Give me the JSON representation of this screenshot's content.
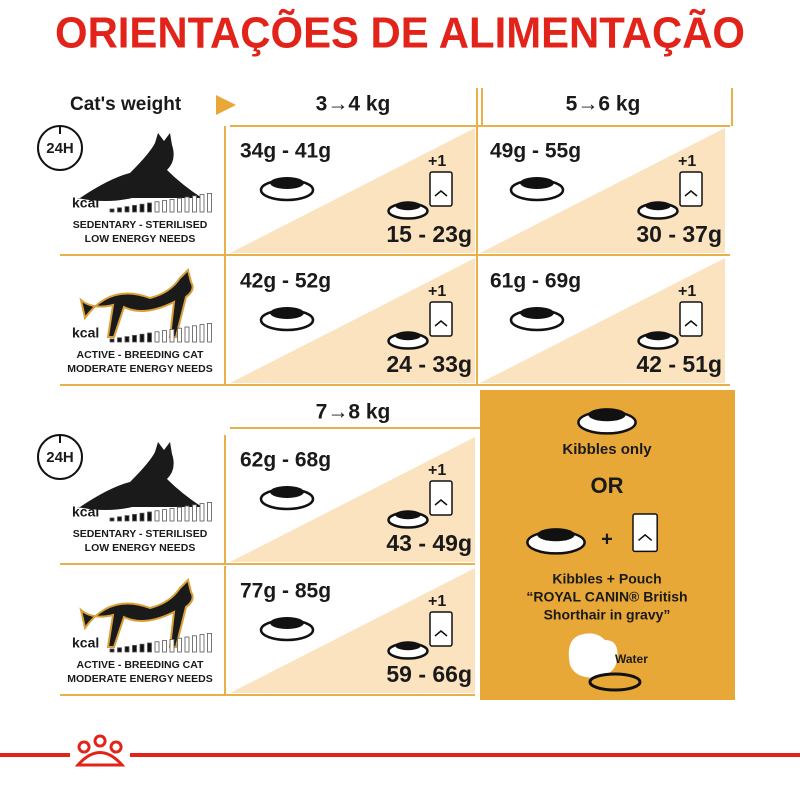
{
  "header": {
    "title": "ORIENTAÇÕES DE ALIMENTAÇÃO"
  },
  "weight_label": "Cat's weight",
  "sections": [
    {
      "weights": [
        "3→4 kg",
        "5→6 kg"
      ],
      "rows": [
        {
          "timer": "24H",
          "kcal": "kcal",
          "profile": [
            "SEDENTARY - STERILISED",
            "LOW ENERGY NEEDS"
          ],
          "cells": [
            {
              "kibbles": "34g - 41g",
              "extra": "+1",
              "mixed": "15 - 23g"
            },
            {
              "kibbles": "49g - 55g",
              "extra": "+1",
              "mixed": "30 - 37g"
            }
          ]
        },
        {
          "kcal": "kcal",
          "profile": [
            "ACTIVE - BREEDING CAT",
            "MODERATE ENERGY NEEDS"
          ],
          "cells": [
            {
              "kibbles": "42g - 52g",
              "extra": "+1",
              "mixed": "24 - 33g"
            },
            {
              "kibbles": "61g - 69g",
              "extra": "+1",
              "mixed": "42 - 51g"
            }
          ]
        }
      ]
    },
    {
      "weights": [
        "7→8 kg"
      ],
      "rows": [
        {
          "timer": "24H",
          "kcal": "kcal",
          "profile": [
            "SEDENTARY - STERILISED",
            "LOW ENERGY NEEDS"
          ],
          "cells": [
            {
              "kibbles": "62g - 68g",
              "extra": "+1",
              "mixed": "43 - 49g"
            }
          ]
        },
        {
          "kcal": "kcal",
          "profile": [
            "ACTIVE - BREEDING CAT",
            "MODERATE ENERGY NEEDS"
          ],
          "cells": [
            {
              "kibbles": "77g - 85g",
              "extra": "+1",
              "mixed": "59 - 66g"
            }
          ]
        }
      ]
    }
  ],
  "legend": {
    "kibbles_only": "Kibbles only",
    "or": "OR",
    "plus": "+",
    "mixed": [
      "Kibbles + Pouch",
      "“ROYAL CANIN® British",
      "Shorthair in gravy”"
    ],
    "water": "Water"
  }
}
